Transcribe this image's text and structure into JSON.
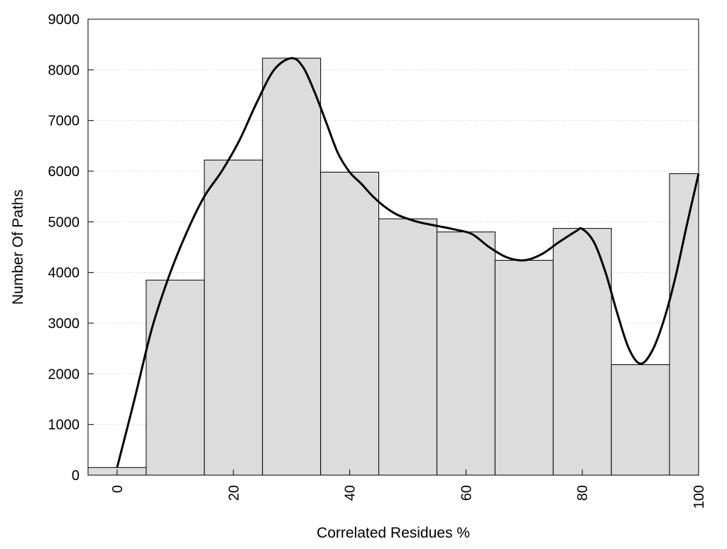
{
  "chart_data": {
    "type": "bar",
    "title": "",
    "xlabel": "Correlated Residues %",
    "ylabel": "Number Of Paths",
    "xlim": [
      -5,
      100
    ],
    "ylim": [
      0,
      9000
    ],
    "x_ticks": [
      0,
      20,
      40,
      60,
      80,
      100
    ],
    "y_ticks": [
      0,
      1000,
      2000,
      3000,
      4000,
      5000,
      6000,
      7000,
      8000,
      9000
    ],
    "grid": "horizontal-dotted",
    "bin_width": 10,
    "categories": [
      0,
      10,
      20,
      30,
      40,
      50,
      60,
      70,
      80,
      90,
      100
    ],
    "values": [
      150,
      3850,
      6220,
      8230,
      5980,
      5060,
      4800,
      4240,
      4870,
      2180,
      5950
    ],
    "series": [
      {
        "type": "bar",
        "values": [
          150,
          3850,
          6220,
          8230,
          5980,
          5060,
          4800,
          4240,
          4870,
          2180,
          5950
        ],
        "color": "#dcdcdc"
      },
      {
        "type": "line",
        "x": [
          0,
          3,
          6,
          9,
          12,
          15,
          18,
          21,
          24,
          27,
          30,
          32,
          34,
          36,
          38,
          40,
          42,
          44,
          46,
          48,
          50,
          52,
          55,
          58,
          61,
          64,
          67,
          70,
          73,
          76,
          79,
          80,
          82,
          84,
          86,
          88,
          90,
          92,
          94,
          96,
          98,
          100
        ],
        "y": [
          150,
          1500,
          2900,
          3950,
          4800,
          5500,
          6000,
          6600,
          7350,
          8000,
          8230,
          8050,
          7550,
          6950,
          6350,
          5980,
          5750,
          5500,
          5300,
          5150,
          5060,
          4990,
          4920,
          4850,
          4760,
          4500,
          4300,
          4240,
          4360,
          4600,
          4820,
          4860,
          4600,
          4000,
          3200,
          2500,
          2200,
          2450,
          3050,
          3900,
          4950,
          5950
        ],
        "color": "#000000"
      }
    ]
  }
}
